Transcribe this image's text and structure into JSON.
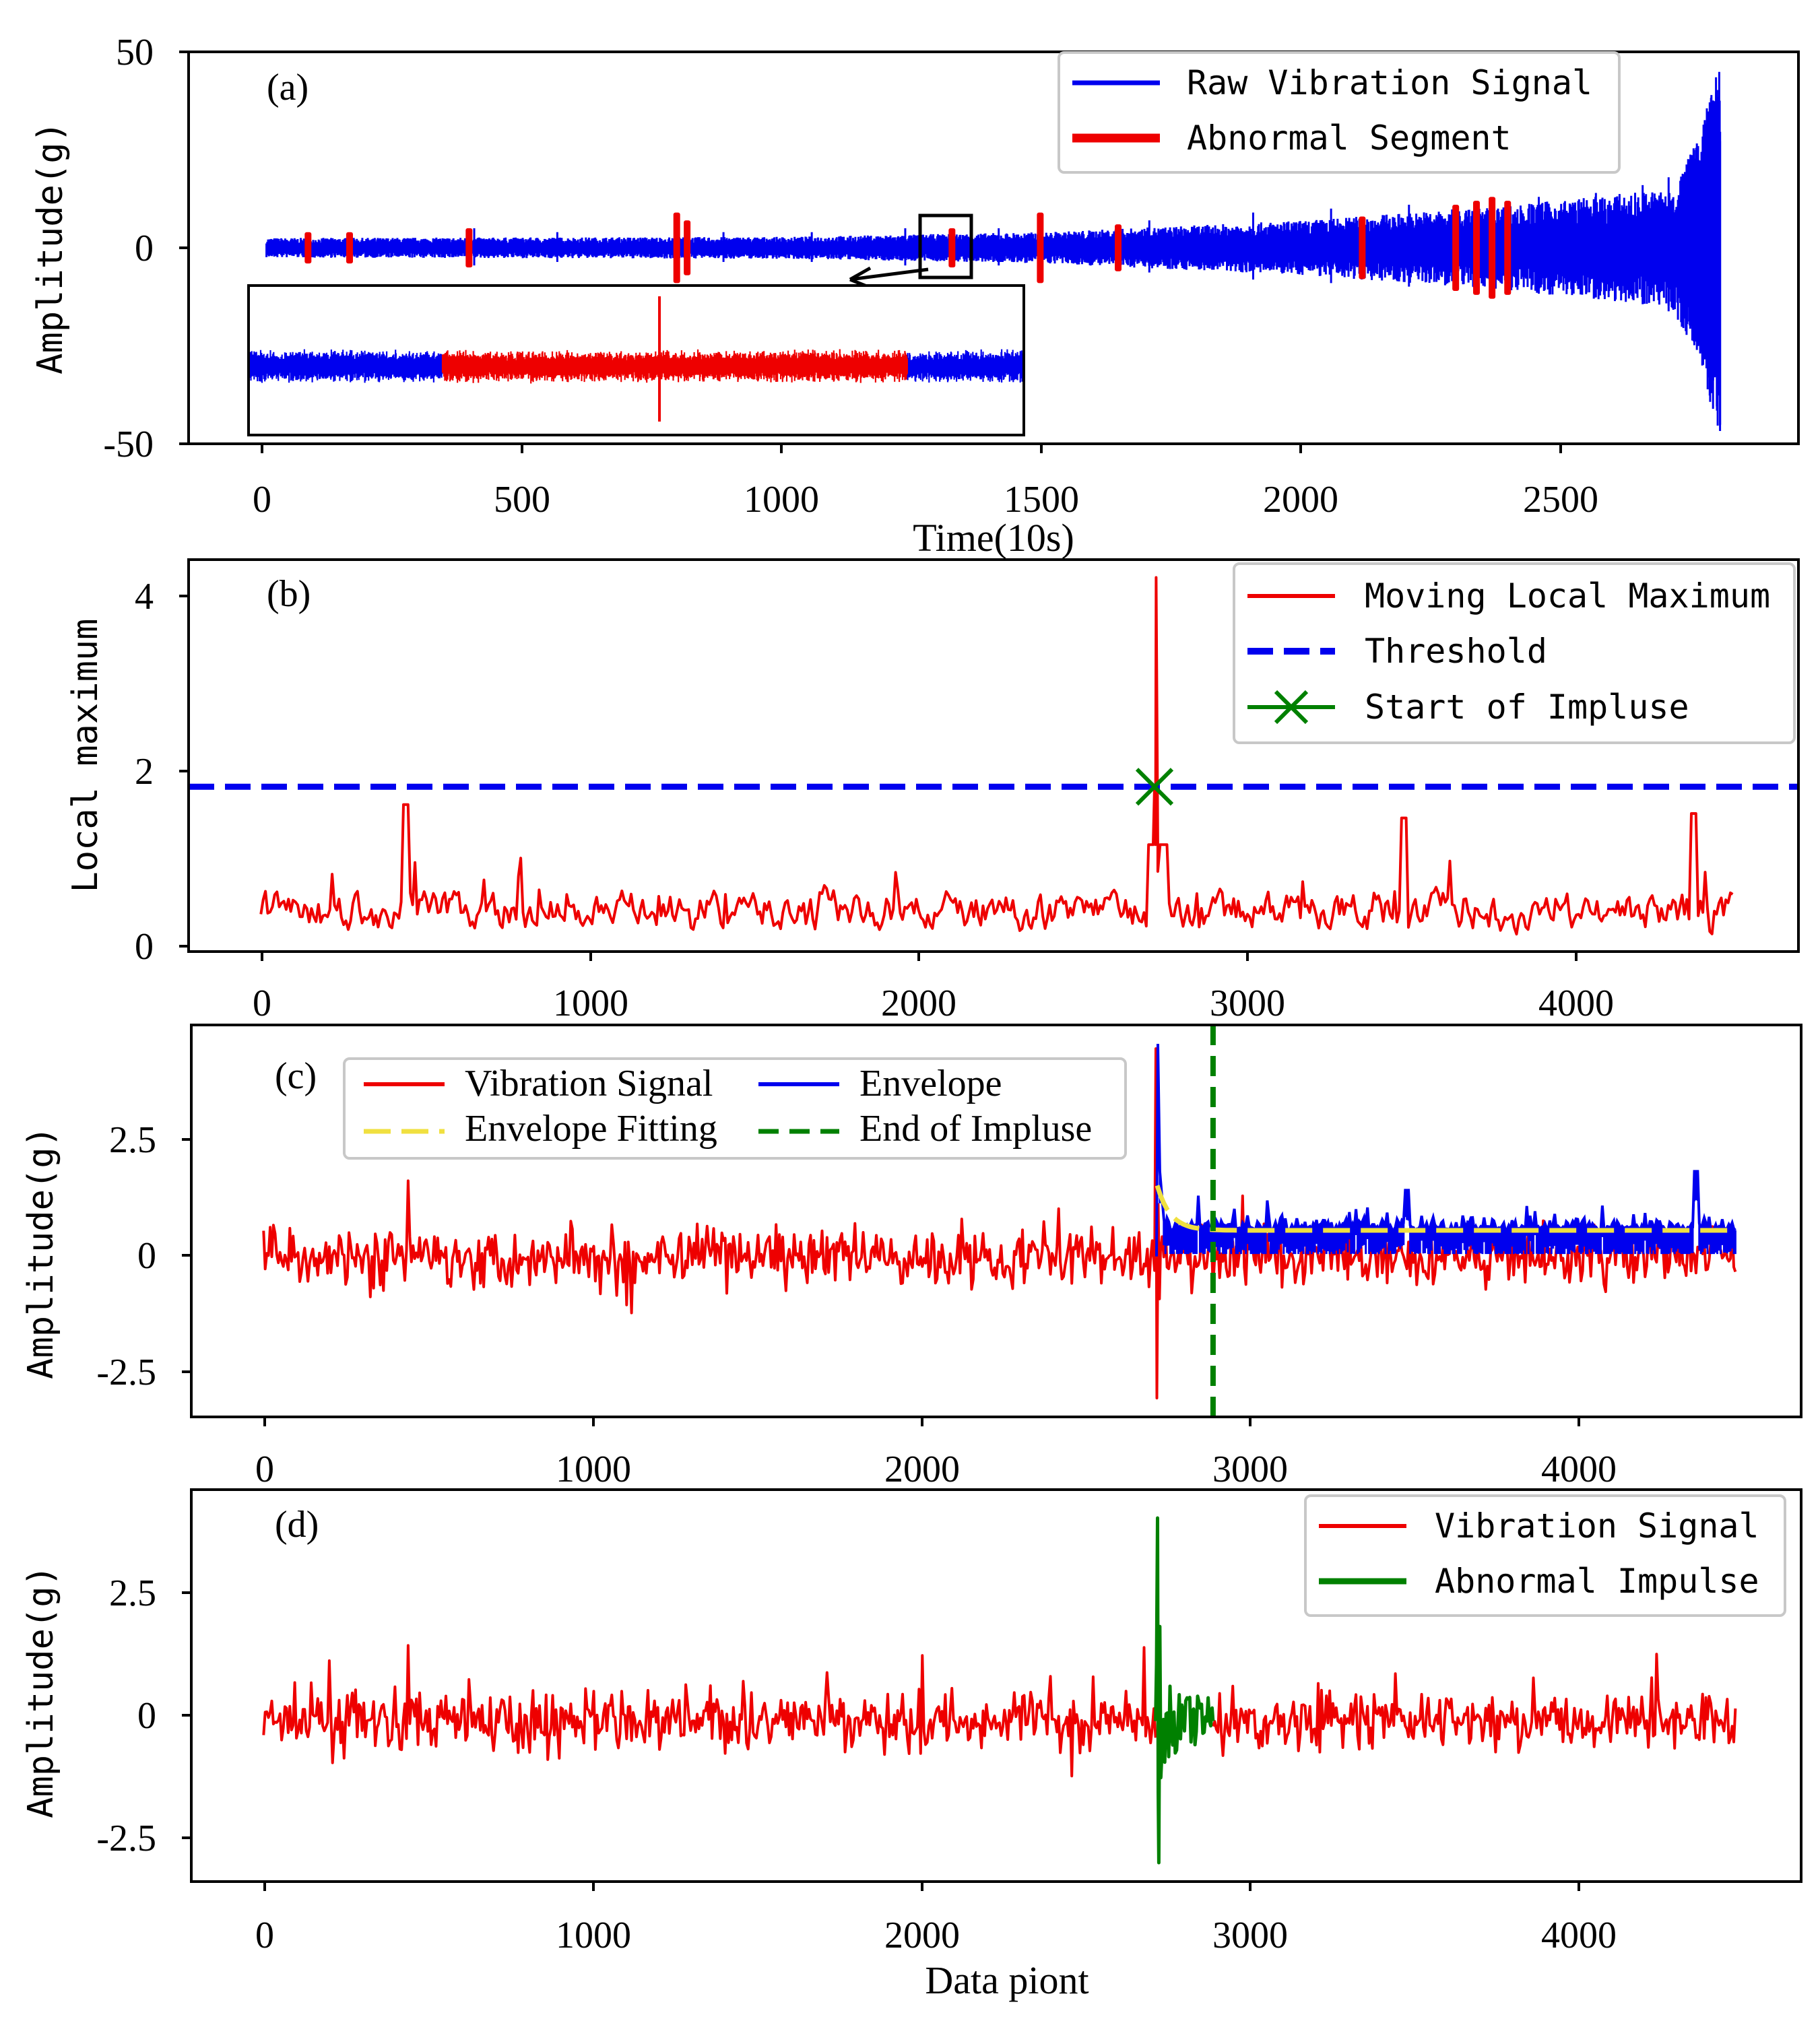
{
  "chart_data": [
    {
      "panel_label": "(a)",
      "type": "line",
      "title": "",
      "xlabel": "Time(10s)",
      "ylabel": "Amplitude(g)",
      "xlim": [
        -150,
        2950
      ],
      "ylim": [
        -50,
        50
      ],
      "xticks": [
        0,
        500,
        1000,
        1500,
        2000,
        2500
      ],
      "yticks": [
        -50,
        0,
        50
      ],
      "legend_position": "top-right",
      "series": [
        {
          "name": "Raw Vibration Signal",
          "color": "#0000ee",
          "length": 2800,
          "envelope": [
            [
              0,
              2.5
            ],
            [
              1000,
              2.8
            ],
            [
              1500,
              4
            ],
            [
              2000,
              7
            ],
            [
              2400,
              11
            ],
            [
              2700,
              15
            ],
            [
              2760,
              28
            ],
            [
              2790,
              45
            ],
            [
              2800,
              48
            ]
          ]
        },
        {
          "name": "Abnormal Segment",
          "color": "#ee0000",
          "segments": [
            [
              80,
              4
            ],
            [
              160,
              4
            ],
            [
              390,
              5
            ],
            [
              790,
              9
            ],
            [
              810,
              7
            ],
            [
              1320,
              5
            ],
            [
              1490,
              9
            ],
            [
              1640,
              6
            ],
            [
              2110,
              8
            ],
            [
              2290,
              11
            ],
            [
              2330,
              12
            ],
            [
              2360,
              13
            ],
            [
              2390,
              12
            ]
          ]
        }
      ],
      "inset": {
        "range": [
          1265,
          1365
        ],
        "highlight": [
          1290,
          1350
        ],
        "spike_at": 1318
      }
    },
    {
      "panel_label": "(b)",
      "type": "line",
      "ylabel": "Local maximum",
      "xlim": [
        -220,
        4680
      ],
      "ylim": [
        0,
        4.4
      ],
      "xticks": [
        0,
        1000,
        2000,
        3000,
        4000
      ],
      "yticks": [
        0,
        2,
        4
      ],
      "legend_position": "top-right",
      "threshold": 1.85,
      "impulse_start": {
        "x": 2720,
        "y": 1.85
      },
      "series": [
        {
          "name": "Moving Local Maximum",
          "color": "#ee0000",
          "length": 4480,
          "peak": {
            "x": 2725,
            "y": 4.2
          }
        },
        {
          "name": "Threshold",
          "color": "#0000ee",
          "style": "dashed"
        },
        {
          "name": "Start of Impluse",
          "color": "#008000",
          "marker": "x"
        }
      ]
    },
    {
      "panel_label": "(c)",
      "type": "line",
      "ylabel": "Amplitude(g)",
      "xlim": [
        -220,
        4680
      ],
      "ylim": [
        -3.4,
        4.9
      ],
      "xticks": [
        0,
        1000,
        2000,
        3000,
        4000
      ],
      "yticks": [
        -2.5,
        0.0,
        2.5
      ],
      "legend_position": "top-left",
      "impulse_end": 2890,
      "series": [
        {
          "name": "Vibration Signal",
          "color": "#ee0000",
          "length": 4480,
          "min": -3.0,
          "max": 4.4
        },
        {
          "name": "Envelope",
          "color": "#0000ee",
          "from": 2720,
          "peak": 4.5
        },
        {
          "name": "Envelope Fitting",
          "color": "#f0e040",
          "style": "dashed",
          "start": 1.5,
          "asymptote": 0.55
        },
        {
          "name": "End of Impluse",
          "color": "#008000",
          "style": "dashed"
        }
      ]
    },
    {
      "panel_label": "(d)",
      "type": "line",
      "xlabel": "Data piont",
      "ylabel": "Amplitude(g)",
      "xlim": [
        -220,
        4680
      ],
      "ylim": [
        -3.4,
        4.9
      ],
      "xticks": [
        0,
        1000,
        2000,
        3000,
        4000
      ],
      "yticks": [
        -2.5,
        0.0,
        2.5
      ],
      "legend_position": "top-right",
      "impulse_range": [
        2715,
        2890
      ],
      "series": [
        {
          "name": "Vibration Signal",
          "color": "#ee0000",
          "length": 4480
        },
        {
          "name": "Abnormal Impulse",
          "color": "#008000",
          "from": 2715,
          "to": 2890,
          "peak": 4.3,
          "min": -3.0
        }
      ]
    }
  ]
}
